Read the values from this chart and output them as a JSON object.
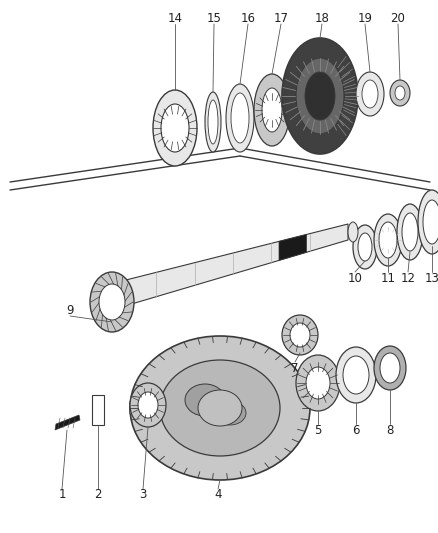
{
  "bg_color": "#ffffff",
  "line_color": "#3a3a3a",
  "gray_fill": "#c8c8c8",
  "dark_fill": "#1a1a1a",
  "white_fill": "#ffffff",
  "light_gray": "#e8e8e8",
  "mid_gray": "#888888"
}
